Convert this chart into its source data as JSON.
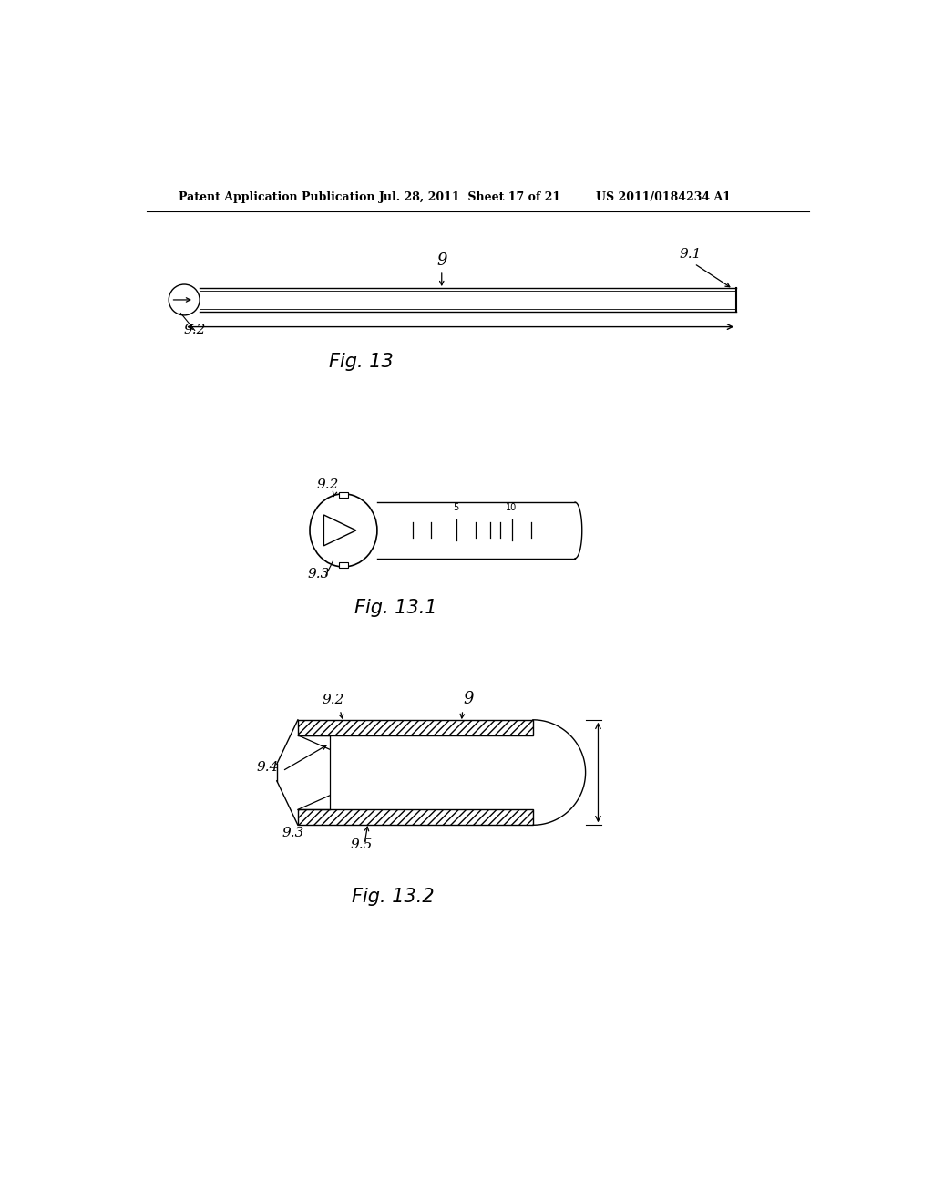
{
  "background_color": "#ffffff",
  "header_left": "Patent Application Publication",
  "header_mid": "Jul. 28, 2011  Sheet 17 of 21",
  "header_right": "US 2011/0184234 A1",
  "fig13_caption": "Fig. 13",
  "fig131_caption": "Fig. 13.1",
  "fig132_caption": "Fig. 13.2",
  "line_color": "#000000",
  "gray_color": "#888888"
}
